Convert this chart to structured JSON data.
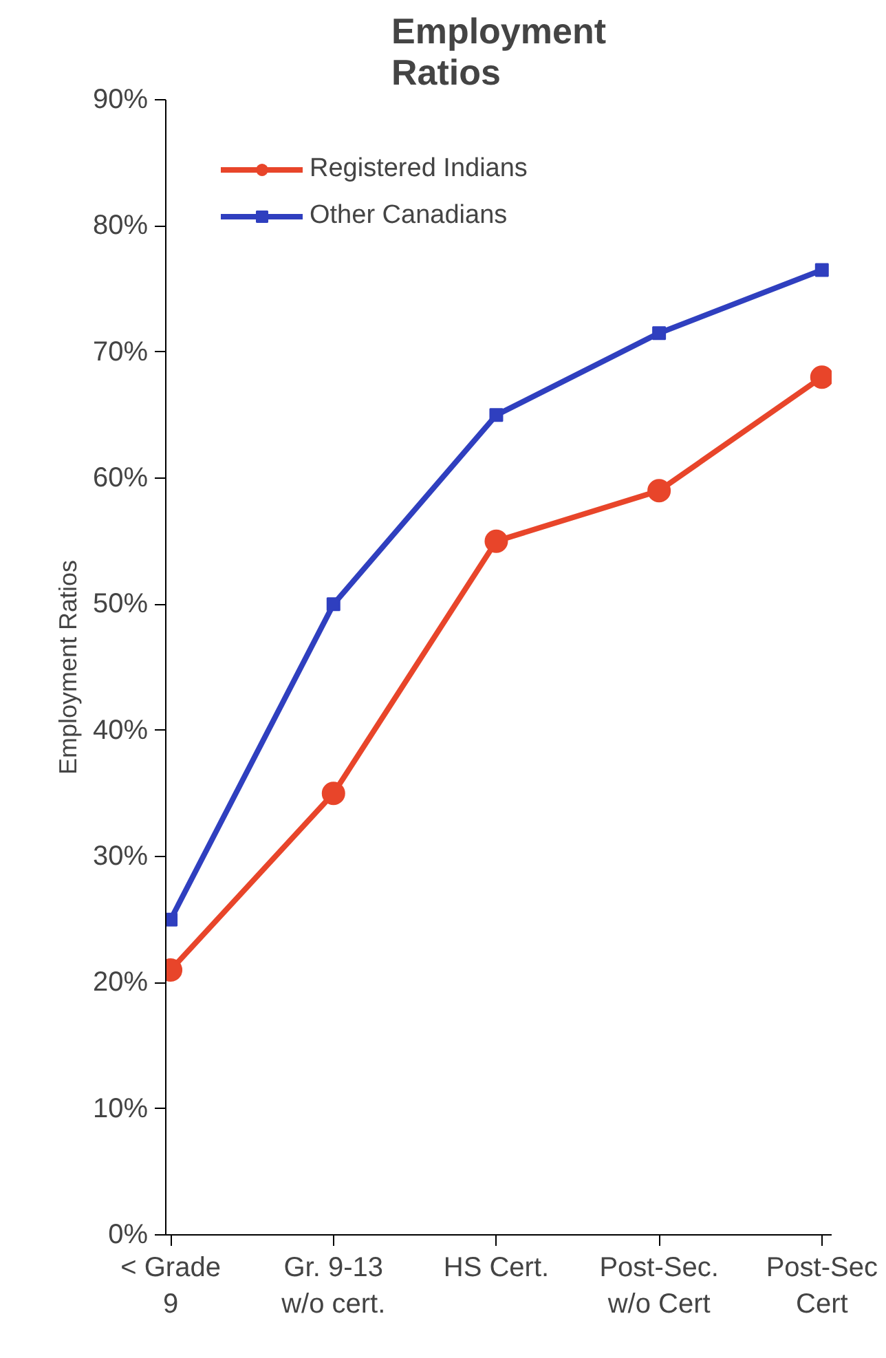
{
  "chart_data": {
    "type": "line",
    "title": "Employment\nRatios",
    "ylabel": "Employment Ratios",
    "categories": [
      "< Grade\n9",
      "Gr. 9-13\nw/o cert.",
      "HS Cert.",
      "Post-Sec.\nw/o Cert",
      "Post-Sec\nCert"
    ],
    "series": [
      {
        "name": "Registered Indians",
        "color": "#e8452a",
        "marker": "circle",
        "values": [
          21,
          35,
          55,
          59,
          68
        ]
      },
      {
        "name": "Other Canadians",
        "color": "#2f3fbf",
        "marker": "square",
        "values": [
          25,
          50,
          65,
          71.5,
          76.5
        ]
      }
    ],
    "ylim": [
      0,
      90
    ],
    "yticks": [
      {
        "value": 0,
        "label": "0%"
      },
      {
        "value": 10,
        "label": "10%"
      },
      {
        "value": 20,
        "label": "20%"
      },
      {
        "value": 30,
        "label": "30%"
      },
      {
        "value": 40,
        "label": "40%"
      },
      {
        "value": 50,
        "label": "50%"
      },
      {
        "value": 60,
        "label": "60%"
      },
      {
        "value": 70,
        "label": "70%"
      },
      {
        "value": 80,
        "label": "80%"
      },
      {
        "value": 90,
        "label": "90%"
      }
    ],
    "grid": false,
    "legend": "top left",
    "line_style": "solid"
  }
}
